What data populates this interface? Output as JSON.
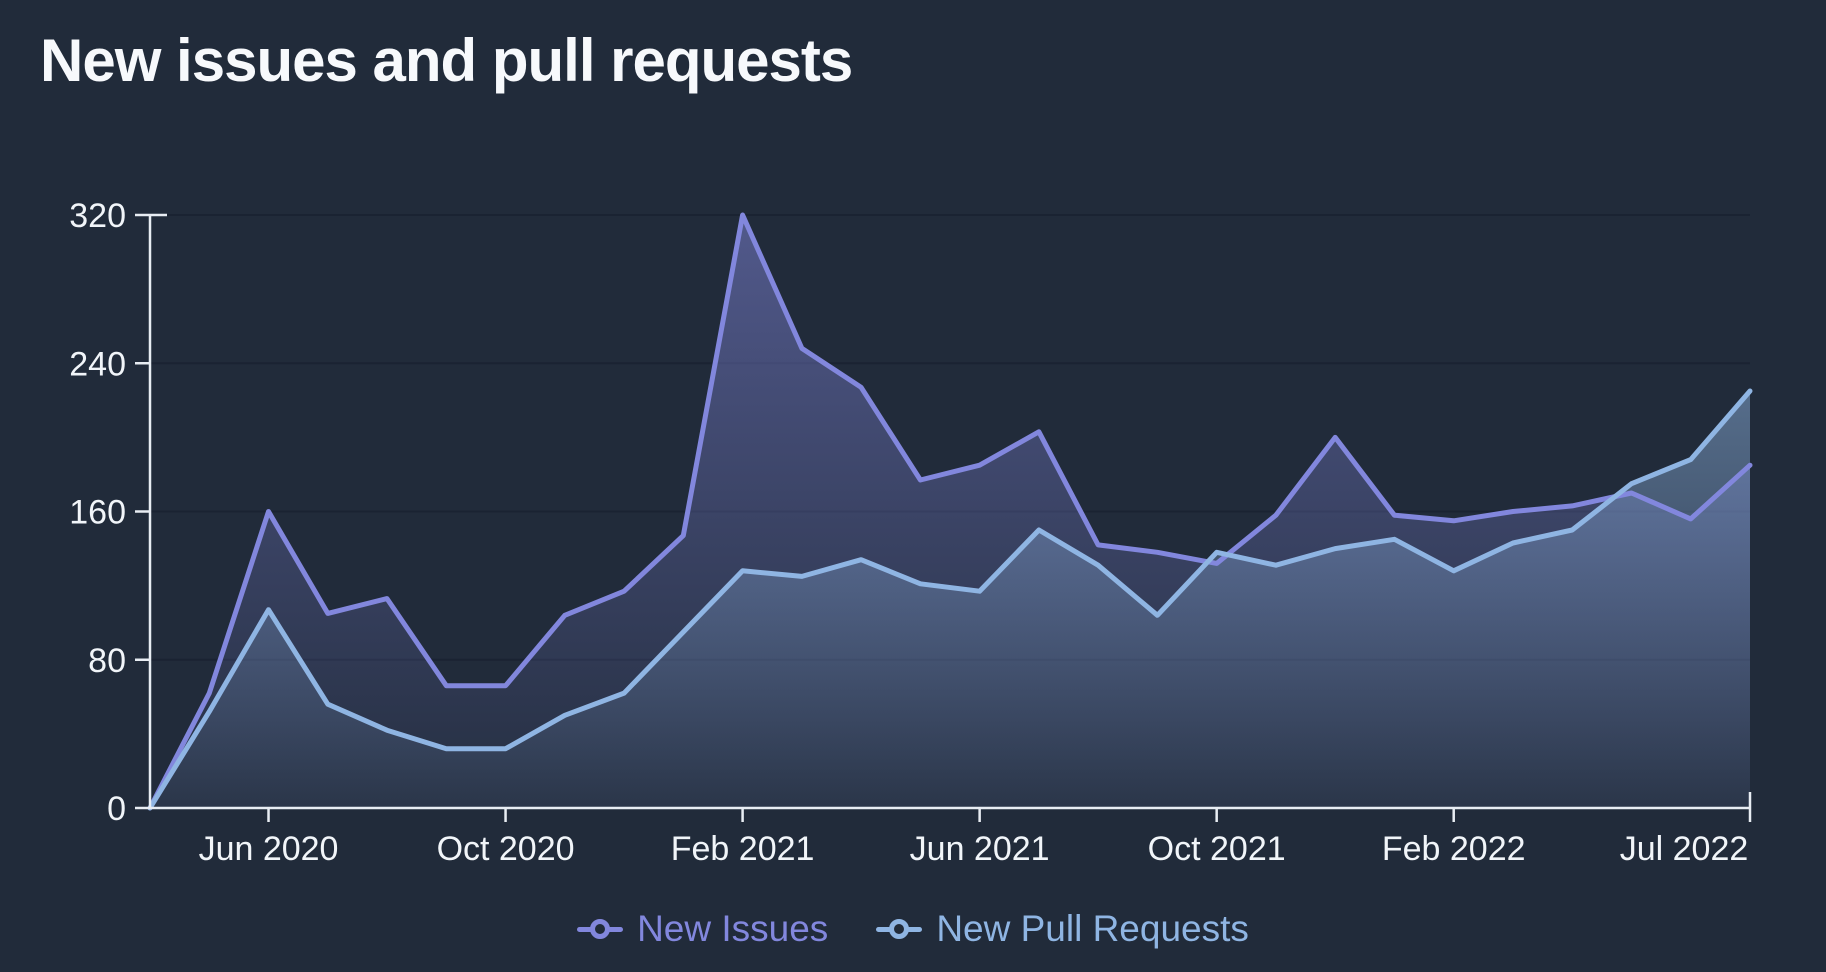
{
  "chart_data": {
    "type": "area",
    "title": "New issues and pull requests",
    "months": [
      "Apr 2020",
      "May 2020",
      "Jun 2020",
      "Jul 2020",
      "Aug 2020",
      "Sep 2020",
      "Oct 2020",
      "Nov 2020",
      "Dec 2020",
      "Jan 2021",
      "Feb 2021",
      "Mar 2021",
      "Apr 2021",
      "May 2021",
      "Jun 2021",
      "Jul 2021",
      "Aug 2021",
      "Sep 2021",
      "Oct 2021",
      "Nov 2021",
      "Dec 2021",
      "Jan 2022",
      "Feb 2022",
      "Mar 2022",
      "Apr 2022",
      "May 2022",
      "Jun 2022",
      "Jul 2022"
    ],
    "series": [
      {
        "name": "New Issues",
        "color": "#8287dd",
        "values": [
          0,
          62,
          160,
          105,
          113,
          66,
          66,
          104,
          117,
          147,
          320,
          248,
          227,
          177,
          185,
          203,
          142,
          138,
          132,
          158,
          200,
          158,
          155,
          160,
          163,
          170,
          156,
          185
        ]
      },
      {
        "name": "New Pull Requests",
        "color": "#8fb5e3",
        "values": [
          0,
          52,
          107,
          56,
          42,
          32,
          32,
          50,
          62,
          95,
          128,
          125,
          134,
          121,
          117,
          150,
          131,
          104,
          138,
          131,
          140,
          145,
          128,
          143,
          150,
          175,
          188,
          225
        ]
      }
    ],
    "xlabel": "",
    "ylabel": "",
    "ylim": [
      0,
      320
    ],
    "yticks": [
      0,
      80,
      160,
      240,
      320
    ],
    "xtick_indices": [
      2,
      6,
      10,
      14,
      18,
      22,
      27
    ],
    "xtick_labels": [
      "Jun 2020",
      "Oct 2020",
      "Feb 2021",
      "Jun 2021",
      "Oct 2021",
      "Feb 2022",
      "Jul 2022"
    ],
    "grid": "horizontal",
    "legend_position": "bottom-center",
    "colors": {
      "background": "#212b3a",
      "axis": "#e8edf3",
      "text": "#f1f5f9",
      "gridline": "#1a2332"
    }
  }
}
